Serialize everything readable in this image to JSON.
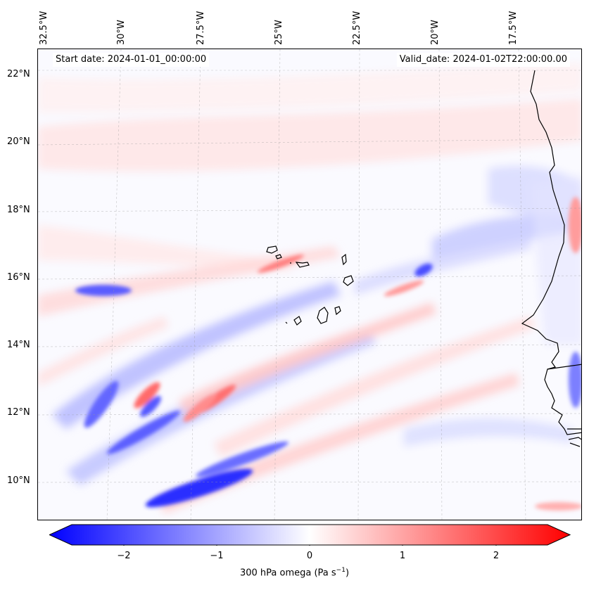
{
  "map": {
    "start_date_text": "Start date: 2024-01-01_00:00:00",
    "valid_date_text": "Valid_date: 2024-01-02T22:00:00.00",
    "lon_labels": [
      "32.5°W",
      "30°W",
      "27.5°W",
      "25°W",
      "22.5°W",
      "20°W",
      "17.5°W"
    ],
    "lat_labels": [
      "22°N",
      "20°N",
      "18°N",
      "16°N",
      "14°N",
      "12°N",
      "10°N"
    ],
    "field": "300 hPa omega",
    "colormap": "bwr",
    "colors": {
      "negative": "#0000ff",
      "neutral": "#ffffff",
      "positive": "#ff0000",
      "coastline": "#000000"
    }
  },
  "colorbar": {
    "label": "300 hPa omega (Pa s",
    "label_exp": "−1",
    "label_close": ")",
    "range": [
      -2.7,
      2.7
    ],
    "extend": "both",
    "ticks": [
      "−2",
      "−1",
      "0",
      "1",
      "2"
    ],
    "tick_values": [
      -2,
      -1,
      0,
      1,
      2
    ]
  }
}
